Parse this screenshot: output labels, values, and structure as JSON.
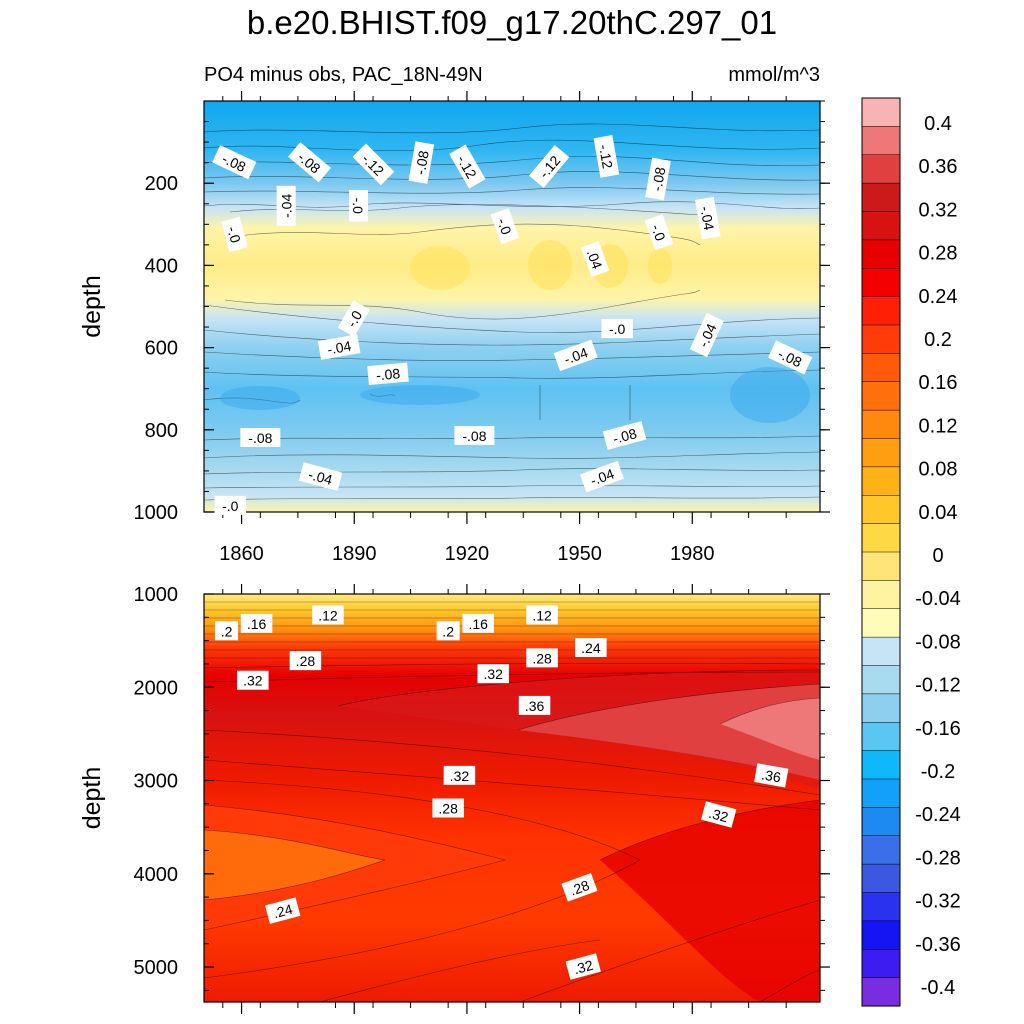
{
  "title": "b.e20.BHIST.f09_g17.20thC.297_01",
  "subtitle_left": "PO4 minus obs, PAC_18N-49N",
  "units": "mmol/m^3",
  "colors": {
    "negative": [
      "#7a2ce0",
      "#3c1cf0",
      "#1414f5",
      "#2a32f0",
      "#3c58e0",
      "#3a6fe8",
      "#1c8af0",
      "#12a0f8",
      "#0fb8fb",
      "#5cc6f2",
      "#8ecff0",
      "#a8daf0",
      "#c6e4f6"
    ],
    "positive": [
      "#fffbb8",
      "#fff2a0",
      "#ffe578",
      "#ffd846",
      "#ffc72a",
      "#ffb218",
      "#ff9e10",
      "#ff880e",
      "#ff700c",
      "#ff5a0a",
      "#ff3c08",
      "#ff1e06",
      "#f40000",
      "#e60000",
      "#d81212",
      "#cc1a1a",
      "#e04040",
      "#ee7878",
      "#f8b4b4"
    ]
  },
  "colorbar": {
    "labels": [
      "0.4",
      "0.36",
      "0.32",
      "0.28",
      "0.24",
      "0.2",
      "0.16",
      "0.12",
      "0.08",
      "0.04",
      "0",
      "-0.04",
      "-0.08",
      "-0.12",
      "-0.16",
      "-0.2",
      "-0.24",
      "-0.28",
      "-0.32",
      "-0.36",
      "-0.4"
    ]
  },
  "chart_data": [
    {
      "type": "heatmap",
      "name": "upper-ocean",
      "x_range": [
        1850,
        2014
      ],
      "x_ticks": [
        "1860",
        "1890",
        "1920",
        "1950",
        "1980"
      ],
      "x_tick_values": [
        1860,
        1890,
        1920,
        1950,
        1980
      ],
      "ylabel": "depth",
      "ylim": [
        0,
        1000
      ],
      "y_ticks": [
        "200",
        "400",
        "600",
        "800",
        "1000"
      ],
      "y_tick_values": [
        200,
        400,
        600,
        800,
        1000
      ],
      "contour_labels": [
        {
          "text": "-.08",
          "x": 1858,
          "y": 150,
          "rot": 25
        },
        {
          "text": "-.08",
          "x": 1878,
          "y": 150,
          "rot": 40
        },
        {
          "text": "-.12",
          "x": 1895,
          "y": 155,
          "rot": 45
        },
        {
          "text": "-.08",
          "x": 1908,
          "y": 150,
          "rot": -80
        },
        {
          "text": "-.12",
          "x": 1920,
          "y": 160,
          "rot": 60
        },
        {
          "text": "-.12",
          "x": 1942,
          "y": 160,
          "rot": -50
        },
        {
          "text": "-.12",
          "x": 1957,
          "y": 135,
          "rot": 80
        },
        {
          "text": "-.08",
          "x": 1971,
          "y": 190,
          "rot": -80
        },
        {
          "text": "-.04",
          "x": 1872,
          "y": 255,
          "rot": -90
        },
        {
          "text": "-.0",
          "x": 1891,
          "y": 255,
          "rot": 90
        },
        {
          "text": "-.0",
          "x": 1858,
          "y": 325,
          "rot": 75
        },
        {
          "text": "-.0",
          "x": 1930,
          "y": 305,
          "rot": 70
        },
        {
          "text": "-.0",
          "x": 1971,
          "y": 320,
          "rot": 70
        },
        {
          "text": "-.04",
          "x": 1984,
          "y": 285,
          "rot": 80
        },
        {
          "text": ".04",
          "x": 1954,
          "y": 385,
          "rot": 70
        },
        {
          "text": "-.0",
          "x": 1890,
          "y": 530,
          "rot": -60
        },
        {
          "text": "-.0",
          "x": 1960,
          "y": 555,
          "rot": 0
        },
        {
          "text": "-.04",
          "x": 1984,
          "y": 570,
          "rot": -65
        },
        {
          "text": "-.04",
          "x": 1886,
          "y": 600,
          "rot": -10
        },
        {
          "text": "-.04",
          "x": 1949,
          "y": 620,
          "rot": -20
        },
        {
          "text": "-.08",
          "x": 2006,
          "y": 625,
          "rot": 25
        },
        {
          "text": "-.08",
          "x": 1899,
          "y": 665,
          "rot": -5
        },
        {
          "text": "-.08",
          "x": 1865,
          "y": 820,
          "rot": 0
        },
        {
          "text": "-.08",
          "x": 1922,
          "y": 815,
          "rot": 0
        },
        {
          "text": "-.08",
          "x": 1962,
          "y": 815,
          "rot": -15
        },
        {
          "text": "-.04",
          "x": 1881,
          "y": 915,
          "rot": 15
        },
        {
          "text": "-.04",
          "x": 1956,
          "y": 915,
          "rot": -20
        },
        {
          "text": "-.0",
          "x": 1857,
          "y": 985,
          "rot": 0
        }
      ]
    },
    {
      "type": "heatmap",
      "name": "deep-ocean",
      "x_range": [
        1850,
        2014
      ],
      "ylabel": "depth",
      "ylim": [
        1000,
        5375
      ],
      "y_ticks": [
        "1000",
        "2000",
        "3000",
        "4000",
        "5000"
      ],
      "y_tick_values": [
        1000,
        2000,
        3000,
        4000,
        5000
      ],
      "contour_labels": [
        {
          "text": ".2",
          "x": 1856,
          "y": 1400,
          "rot": 0
        },
        {
          "text": ".16",
          "x": 1864,
          "y": 1320,
          "rot": 0
        },
        {
          "text": ".12",
          "x": 1883,
          "y": 1230,
          "rot": 0
        },
        {
          "text": ".2",
          "x": 1915,
          "y": 1400,
          "rot": 0
        },
        {
          "text": ".16",
          "x": 1923,
          "y": 1320,
          "rot": 0
        },
        {
          "text": ".12",
          "x": 1940,
          "y": 1230,
          "rot": 0
        },
        {
          "text": ".24",
          "x": 1953,
          "y": 1580,
          "rot": 0
        },
        {
          "text": ".28",
          "x": 1877,
          "y": 1720,
          "rot": 0
        },
        {
          "text": ".28",
          "x": 1940,
          "y": 1690,
          "rot": 0
        },
        {
          "text": ".32",
          "x": 1863,
          "y": 1930,
          "rot": 0
        },
        {
          "text": ".32",
          "x": 1927,
          "y": 1860,
          "rot": 0
        },
        {
          "text": ".36",
          "x": 1938,
          "y": 2200,
          "rot": 0
        },
        {
          "text": ".32",
          "x": 1918,
          "y": 2950,
          "rot": 0
        },
        {
          "text": ".36",
          "x": 2001,
          "y": 2950,
          "rot": 10
        },
        {
          "text": ".28",
          "x": 1915,
          "y": 3300,
          "rot": 0
        },
        {
          "text": ".32",
          "x": 1987,
          "y": 3370,
          "rot": 15
        },
        {
          "text": ".28",
          "x": 1950,
          "y": 4150,
          "rot": -20
        },
        {
          "text": ".24",
          "x": 1871,
          "y": 4400,
          "rot": -15
        },
        {
          "text": ".32",
          "x": 1951,
          "y": 5000,
          "rot": -15
        }
      ]
    }
  ]
}
